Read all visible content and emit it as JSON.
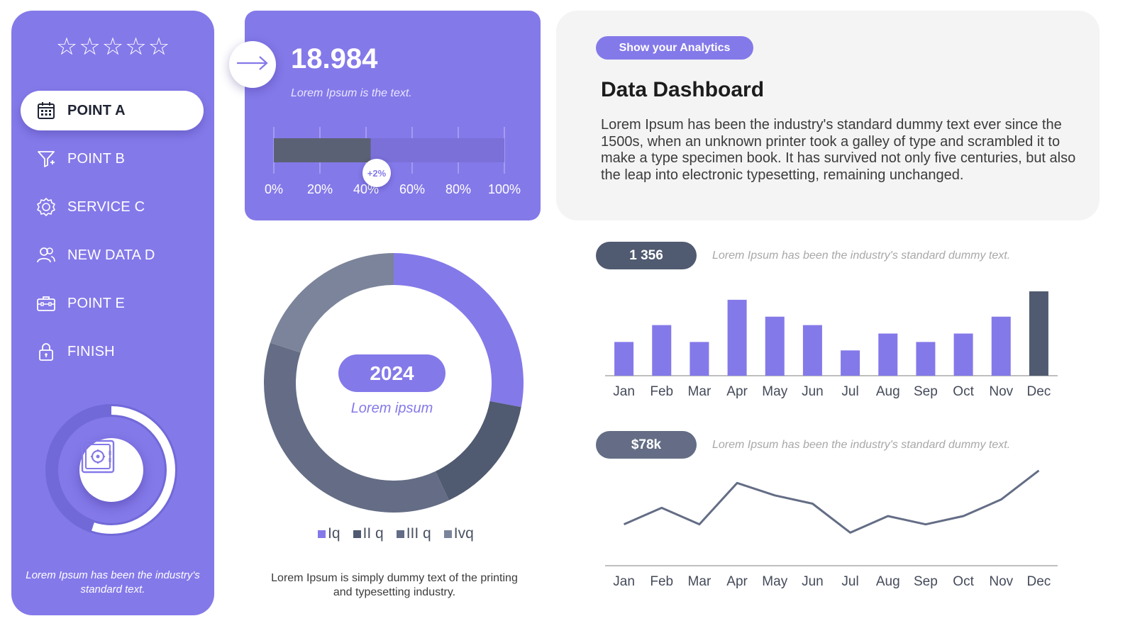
{
  "colors": {
    "accent": "#8479e9",
    "dark": "#505a70",
    "mid": "#646d85",
    "light": "#7b849a",
    "panel": "#f4f4f4"
  },
  "sidebar": {
    "stars": "☆☆☆☆☆",
    "items": [
      {
        "label": "POINT A",
        "icon": "calendar-icon",
        "active": true
      },
      {
        "label": "POINT B",
        "icon": "funnel-icon",
        "active": false
      },
      {
        "label": "SERVICE C",
        "icon": "gear-icon",
        "active": false
      },
      {
        "label": "NEW DATA D",
        "icon": "users-icon",
        "active": false
      },
      {
        "label": "POINT E",
        "icon": "briefcase-icon",
        "active": false
      },
      {
        "label": "FINISH",
        "icon": "lock-icon",
        "active": false
      }
    ],
    "ring_fill": 0.55,
    "safe_icon": "safe-icon",
    "caption": "Lorem Ipsum has been the industry's standard text."
  },
  "kpi": {
    "value": "18.984",
    "subtitle": "Lorem Ipsum is the text.",
    "progress": 0.42,
    "badge": "+2%",
    "ticks": [
      "0%",
      "20%",
      "40%",
      "60%",
      "80%",
      "100%"
    ]
  },
  "info": {
    "button_label": "Show your Analytics",
    "title": "Data Dashboard",
    "body": "Lorem Ipsum has been the industry's standard dummy text ever since the 1500s, when an unknown printer took a galley of type and scrambled it to make a type specimen book. It has survived not only five centuries, but also the leap into electronic typesetting, remaining unchanged."
  },
  "donut": {
    "center_label": "2024",
    "center_sub": "Lorem ipsum",
    "legend": [
      "Iq",
      "II q",
      "III q",
      "Ivq"
    ],
    "caption": "Lorem Ipsum is simply dummy text of the printing and typesetting industry."
  },
  "stats": {
    "bar_value": "1 356",
    "bar_note": "Lorem Ipsum has been the industry's standard dummy text.",
    "line_value": "$78k",
    "line_note": "Lorem Ipsum has been the industry's standard dummy text."
  },
  "chart_data": [
    {
      "type": "pie",
      "categories": [
        "Iq",
        "II q",
        "III q",
        "Ivq"
      ],
      "values": [
        28,
        15,
        37,
        20
      ]
    },
    {
      "type": "bar",
      "categories": [
        "Jan",
        "Feb",
        "Mar",
        "Apr",
        "May",
        "Jun",
        "Jul",
        "Aug",
        "Sep",
        "Oct",
        "Nov",
        "Dec"
      ],
      "values": [
        4,
        6,
        4,
        9,
        7,
        6,
        3,
        5,
        4,
        5,
        7,
        10
      ],
      "highlight_index": 11,
      "ylim": [
        0,
        10
      ]
    },
    {
      "type": "line",
      "categories": [
        "Jan",
        "Feb",
        "Mar",
        "Apr",
        "May",
        "Jun",
        "Jul",
        "Aug",
        "Sep",
        "Oct",
        "Nov",
        "Dec"
      ],
      "values": [
        5,
        7,
        5,
        10,
        8.5,
        7.5,
        4,
        6,
        5,
        6,
        8,
        11.5
      ],
      "ylim": [
        0,
        15
      ]
    }
  ]
}
